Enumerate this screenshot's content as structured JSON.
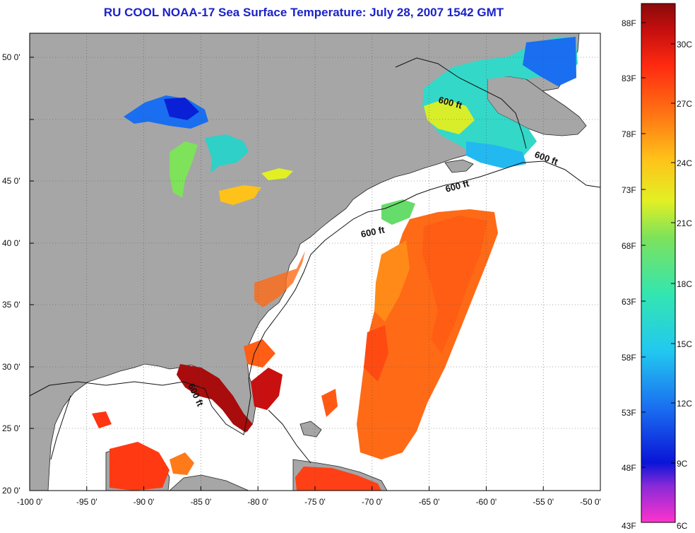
{
  "title": "RU COOL  NOAA-17  Sea Surface Temperature:  July 28, 2007 1542 GMT",
  "map": {
    "lon_range": [
      -100,
      -50
    ],
    "lat_range": [
      20,
      52
    ],
    "lon_ticks": [
      "-100 0'",
      "-95 0'",
      "-90 0'",
      "-85 0'",
      "-80 0'",
      "-75 0'",
      "-70 0'",
      "-65 0'",
      "-60 0'",
      "-55 0'",
      "-50 0'"
    ],
    "lat_ticks": [
      "20 0'",
      "25 0'",
      "30 0'",
      "35 0'",
      "40 0'",
      "45 0'",
      "50 0'"
    ],
    "contour_label": "600 ft",
    "colors": {
      "land": "#a6a6a6",
      "no_data": "#ffffff",
      "frame": "#000000"
    }
  },
  "colorbar": {
    "fahrenheit_labels": [
      "88F",
      "83F",
      "78F",
      "73F",
      "68F",
      "63F",
      "58F",
      "53F",
      "48F",
      "43F"
    ],
    "celsius_labels": [
      "30C",
      "27C",
      "24C",
      "21C",
      "18C",
      "15C",
      "12C",
      "9C",
      "6C"
    ],
    "colors": [
      "#ff33cc",
      "#6a1fd0",
      "#0a14d8",
      "#1a6ef0",
      "#22c8f0",
      "#33e6b0",
      "#7ee25a",
      "#e2f023",
      "#ffc21a",
      "#ff7a14",
      "#ff2a10",
      "#c40e0e",
      "#8a0a0a"
    ]
  }
}
